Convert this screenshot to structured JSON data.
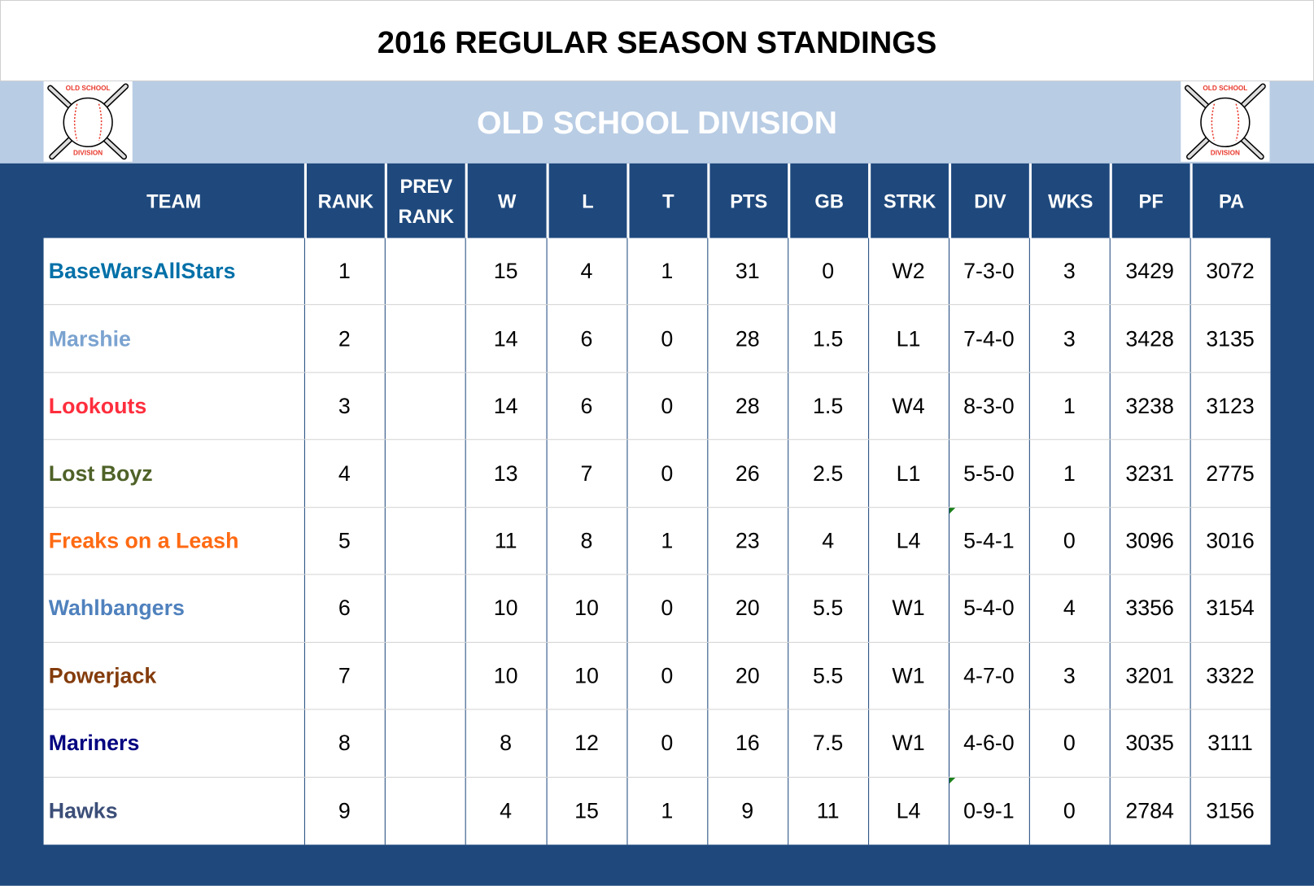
{
  "title": "2016 REGULAR SEASON STANDINGS",
  "division": {
    "name": "OLD SCHOOL DIVISION",
    "logo": {
      "icon": "crossed-bats-baseball-icon",
      "text_top": "OLD SCHOOL",
      "text_bottom": "DIVISION"
    }
  },
  "colors": {
    "header_bg": "#1f497d",
    "division_band_bg": "#b8cce4",
    "grid_line": "#1f497d",
    "row_separator": "#d4d4d4"
  },
  "columns": [
    "TEAM",
    "RANK",
    "PREV RANK",
    "W",
    "L",
    "T",
    "PTS",
    "GB",
    "STRK",
    "DIV",
    "WKS",
    "PF",
    "PA"
  ],
  "column_labels": {
    "team": "TEAM",
    "rank": "RANK",
    "prev_rank_1": "PREV",
    "prev_rank_2": "RANK",
    "w": "W",
    "l": "L",
    "t": "T",
    "pts": "PTS",
    "gb": "GB",
    "strk": "STRK",
    "div": "DIV",
    "wks": "WKS",
    "pf": "PF",
    "pa": "PA"
  },
  "rows": [
    {
      "team": "BaseWarsAllStars",
      "color": "#0070a8",
      "rank": "1",
      "prev_rank": "",
      "w": "15",
      "l": "4",
      "t": "1",
      "pts": "31",
      "gb": "0",
      "strk": "W2",
      "div": "7-3-0",
      "wks": "3",
      "pf": "3429",
      "pa": "3072"
    },
    {
      "team": "Marshie",
      "color": "#7ba3d0",
      "rank": "2",
      "prev_rank": "",
      "w": "14",
      "l": "6",
      "t": "0",
      "pts": "28",
      "gb": "1.5",
      "strk": "L1",
      "div": "7-4-0",
      "wks": "3",
      "pf": "3428",
      "pa": "3135"
    },
    {
      "team": "Lookouts",
      "color": "#ff2e3d",
      "rank": "3",
      "prev_rank": "",
      "w": "14",
      "l": "6",
      "t": "0",
      "pts": "28",
      "gb": "1.5",
      "strk": "W4",
      "div": "8-3-0",
      "wks": "1",
      "pf": "3238",
      "pa": "3123"
    },
    {
      "team": "Lost Boyz",
      "color": "#4f6228",
      "rank": "4",
      "prev_rank": "",
      "w": "13",
      "l": "7",
      "t": "0",
      "pts": "26",
      "gb": "2.5",
      "strk": "L1",
      "div": "5-5-0",
      "wks": "1",
      "pf": "3231",
      "pa": "2775"
    },
    {
      "team": "Freaks on a Leash",
      "color": "#ff6a13",
      "rank": "5",
      "prev_rank": "",
      "w": "11",
      "l": "8",
      "t": "1",
      "pts": "23",
      "gb": "4",
      "strk": "L4",
      "div": "5-4-1",
      "wks": "0",
      "pf": "3096",
      "pa": "3016",
      "div_flag": true
    },
    {
      "team": "Wahlbangers",
      "color": "#4f81bd",
      "rank": "6",
      "prev_rank": "",
      "w": "10",
      "l": "10",
      "t": "0",
      "pts": "20",
      "gb": "5.5",
      "strk": "W1",
      "div": "5-4-0",
      "wks": "4",
      "pf": "3356",
      "pa": "3154"
    },
    {
      "team": "Powerjack",
      "color": "#843c0c",
      "rank": "7",
      "prev_rank": "",
      "w": "10",
      "l": "10",
      "t": "0",
      "pts": "20",
      "gb": "5.5",
      "strk": "W1",
      "div": "4-7-0",
      "wks": "3",
      "pf": "3201",
      "pa": "3322"
    },
    {
      "team": "Mariners",
      "color": "#000080",
      "rank": "8",
      "prev_rank": "",
      "w": "8",
      "l": "12",
      "t": "0",
      "pts": "16",
      "gb": "7.5",
      "strk": "W1",
      "div": "4-6-0",
      "wks": "0",
      "pf": "3035",
      "pa": "3111"
    },
    {
      "team": "Hawks",
      "color": "#3b4e78",
      "rank": "9",
      "prev_rank": "",
      "w": "4",
      "l": "15",
      "t": "1",
      "pts": "9",
      "gb": "11",
      "strk": "L4",
      "div": "0-9-1",
      "wks": "0",
      "pf": "2784",
      "pa": "3156",
      "div_flag": true
    }
  ]
}
